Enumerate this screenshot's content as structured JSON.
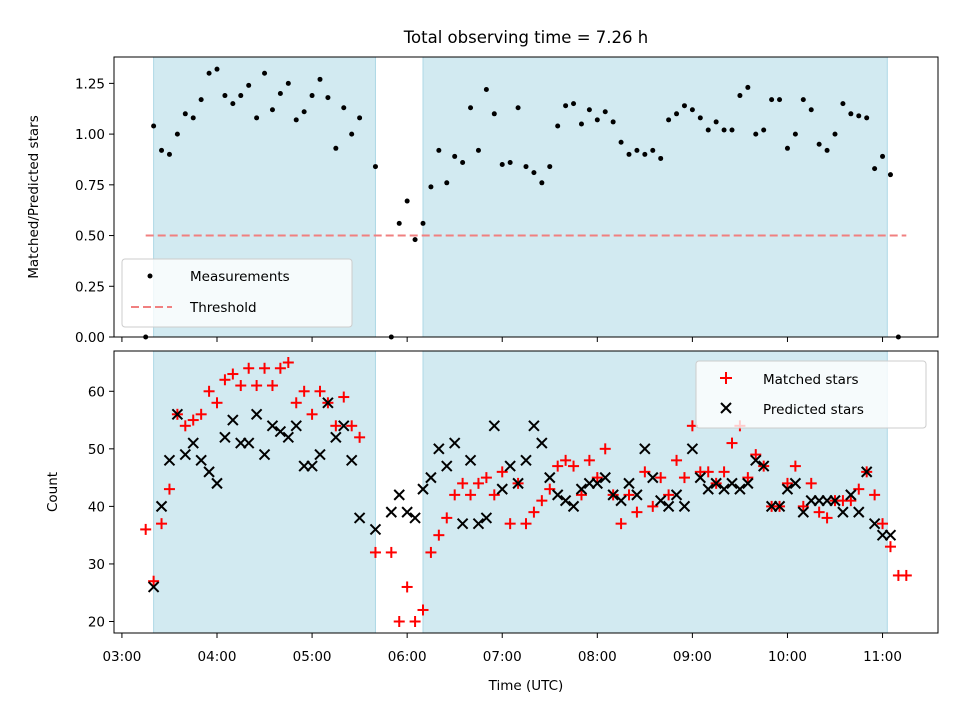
{
  "colors": {
    "span": "#add8e6",
    "measurement": "#000000",
    "threshold": "#f08080",
    "matched": "#ff0000",
    "predicted": "#000000"
  },
  "chart_data": [
    {
      "type": "scatter",
      "panel": "top",
      "title": "Total observing time = 7.26 h",
      "xlabel": "",
      "ylabel": "Matched/Predicted stars",
      "ylim": [
        0,
        1.38
      ],
      "yticks": [
        0.0,
        0.25,
        0.5,
        0.75,
        1.0,
        1.25
      ],
      "ytick_labels": [
        "0.00",
        "0.25",
        "0.50",
        "0.75",
        "1.00",
        "1.25"
      ],
      "shaded_spans": [
        [
          "03:20",
          "05:40"
        ],
        [
          "06:10",
          "11:03"
        ]
      ],
      "legend": {
        "position": "lower-left",
        "entries": [
          "Measurements",
          "Threshold"
        ]
      },
      "threshold": {
        "name": "Threshold",
        "y": 0.5,
        "x": [
          "03:15",
          "11:15"
        ]
      },
      "series": [
        {
          "name": "Measurements",
          "x": [
            "03:15",
            "03:20",
            "03:25",
            "03:30",
            "03:35",
            "03:40",
            "03:45",
            "03:50",
            "03:55",
            "04:00",
            "04:05",
            "04:10",
            "04:15",
            "04:20",
            "04:25",
            "04:30",
            "04:35",
            "04:40",
            "04:45",
            "04:50",
            "04:55",
            "05:00",
            "05:05",
            "05:10",
            "05:15",
            "05:20",
            "05:25",
            "05:30",
            "05:40",
            "05:50",
            "05:55",
            "06:00",
            "06:05",
            "06:10",
            "06:15",
            "06:20",
            "06:25",
            "06:30",
            "06:35",
            "06:40",
            "06:45",
            "06:50",
            "06:55",
            "07:00",
            "07:05",
            "07:10",
            "07:15",
            "07:20",
            "07:25",
            "07:30",
            "07:35",
            "07:40",
            "07:45",
            "07:50",
            "07:55",
            "08:00",
            "08:05",
            "08:10",
            "08:15",
            "08:20",
            "08:25",
            "08:30",
            "08:35",
            "08:40",
            "08:45",
            "08:50",
            "08:55",
            "09:00",
            "09:05",
            "09:10",
            "09:15",
            "09:20",
            "09:25",
            "09:30",
            "09:35",
            "09:40",
            "09:45",
            "09:50",
            "09:55",
            "10:00",
            "10:05",
            "10:10",
            "10:15",
            "10:20",
            "10:25",
            "10:30",
            "10:35",
            "10:40",
            "10:45",
            "10:50",
            "10:55",
            "11:00",
            "11:05",
            "11:10"
          ],
          "values": [
            0.0,
            1.04,
            0.92,
            0.9,
            1.0,
            1.1,
            1.08,
            1.17,
            1.3,
            1.32,
            1.19,
            1.15,
            1.19,
            1.24,
            1.08,
            1.3,
            1.12,
            1.2,
            1.25,
            1.07,
            1.11,
            1.19,
            1.27,
            1.18,
            0.93,
            1.13,
            1.0,
            1.08,
            0.84,
            0.0,
            0.56,
            0.67,
            0.48,
            0.56,
            0.74,
            0.92,
            0.76,
            0.89,
            0.86,
            1.13,
            0.92,
            1.22,
            1.1,
            0.85,
            0.86,
            1.13,
            0.84,
            0.81,
            0.76,
            0.84,
            1.04,
            1.14,
            1.15,
            1.05,
            1.12,
            1.07,
            1.11,
            1.06,
            0.96,
            0.9,
            0.92,
            0.9,
            0.92,
            0.88,
            1.07,
            1.1,
            1.14,
            1.12,
            1.08,
            1.02,
            1.06,
            1.02,
            1.02,
            1.19,
            1.23,
            1.0,
            1.02,
            1.17,
            1.17,
            0.93,
            1.0,
            1.17,
            1.12,
            0.95,
            0.92,
            1.0,
            1.15,
            1.1,
            1.09,
            1.08,
            0.83,
            0.89,
            0.8,
            0.0
          ]
        }
      ]
    },
    {
      "type": "scatter",
      "panel": "bottom",
      "title": "",
      "xlabel": "Time (UTC)",
      "ylabel": "Count",
      "ylim": [
        18,
        67
      ],
      "yticks": [
        20,
        30,
        40,
        50,
        60
      ],
      "xlim": [
        "02:55",
        "11:35"
      ],
      "xticks": [
        "03:00",
        "04:00",
        "05:00",
        "06:00",
        "07:00",
        "08:00",
        "09:00",
        "10:00",
        "11:00"
      ],
      "shaded_spans": [
        [
          "03:20",
          "05:40"
        ],
        [
          "06:10",
          "11:03"
        ]
      ],
      "legend": {
        "position": "top-right",
        "entries": [
          "Matched stars",
          "Predicted stars"
        ]
      },
      "series": [
        {
          "name": "Matched stars",
          "marker": "plus",
          "x": [
            "03:15",
            "03:20",
            "03:25",
            "03:30",
            "03:35",
            "03:40",
            "03:45",
            "03:50",
            "03:55",
            "04:00",
            "04:05",
            "04:10",
            "04:15",
            "04:20",
            "04:25",
            "04:30",
            "04:35",
            "04:40",
            "04:45",
            "04:50",
            "04:55",
            "05:00",
            "05:05",
            "05:10",
            "05:15",
            "05:20",
            "05:25",
            "05:30",
            "05:40",
            "05:50",
            "05:55",
            "06:00",
            "06:05",
            "06:10",
            "06:15",
            "06:20",
            "06:25",
            "06:30",
            "06:35",
            "06:40",
            "06:45",
            "06:50",
            "06:55",
            "07:00",
            "07:05",
            "07:10",
            "07:15",
            "07:20",
            "07:25",
            "07:30",
            "07:35",
            "07:40",
            "07:45",
            "07:50",
            "07:55",
            "08:00",
            "08:05",
            "08:10",
            "08:15",
            "08:20",
            "08:25",
            "08:30",
            "08:35",
            "08:40",
            "08:45",
            "08:50",
            "08:55",
            "09:00",
            "09:05",
            "09:10",
            "09:15",
            "09:20",
            "09:25",
            "09:30",
            "09:35",
            "09:40",
            "09:45",
            "09:50",
            "09:55",
            "10:00",
            "10:05",
            "10:10",
            "10:15",
            "10:20",
            "10:25",
            "10:30",
            "10:35",
            "10:40",
            "10:45",
            "10:50",
            "10:55",
            "11:00",
            "11:05",
            "11:10",
            "11:15"
          ],
          "values": [
            36,
            27,
            37,
            43,
            56,
            54,
            55,
            56,
            60,
            58,
            62,
            63,
            61,
            64,
            61,
            64,
            61,
            64,
            65,
            58,
            60,
            56,
            60,
            58,
            54,
            59,
            54,
            52,
            32,
            32,
            20,
            26,
            20,
            22,
            32,
            35,
            38,
            42,
            44,
            42,
            44,
            45,
            42,
            46,
            37,
            44,
            37,
            39,
            41,
            43,
            47,
            48,
            47,
            42,
            48,
            45,
            50,
            42,
            37,
            42,
            39,
            46,
            40,
            45,
            42,
            48,
            45,
            54,
            46,
            46,
            44,
            46,
            51,
            54,
            45,
            49,
            47,
            40,
            40,
            44,
            47,
            40,
            44,
            39,
            38,
            41,
            41,
            41,
            43,
            46,
            42,
            37,
            33,
            28,
            28
          ]
        },
        {
          "name": "Predicted stars",
          "marker": "x",
          "x": [
            "03:20",
            "03:25",
            "03:30",
            "03:35",
            "03:40",
            "03:45",
            "03:50",
            "03:55",
            "04:00",
            "04:05",
            "04:10",
            "04:15",
            "04:20",
            "04:25",
            "04:30",
            "04:35",
            "04:40",
            "04:45",
            "04:50",
            "04:55",
            "05:00",
            "05:05",
            "05:10",
            "05:15",
            "05:20",
            "05:25",
            "05:30",
            "05:40",
            "05:50",
            "05:55",
            "06:00",
            "06:05",
            "06:10",
            "06:15",
            "06:20",
            "06:25",
            "06:30",
            "06:35",
            "06:40",
            "06:45",
            "06:50",
            "06:55",
            "07:00",
            "07:05",
            "07:10",
            "07:15",
            "07:20",
            "07:25",
            "07:30",
            "07:35",
            "07:40",
            "07:45",
            "07:50",
            "07:55",
            "08:00",
            "08:05",
            "08:10",
            "08:15",
            "08:20",
            "08:25",
            "08:30",
            "08:35",
            "08:40",
            "08:45",
            "08:50",
            "08:55",
            "09:00",
            "09:05",
            "09:10",
            "09:15",
            "09:20",
            "09:25",
            "09:30",
            "09:35",
            "09:40",
            "09:45",
            "09:50",
            "09:55",
            "10:00",
            "10:05",
            "10:10",
            "10:15",
            "10:20",
            "10:25",
            "10:30",
            "10:35",
            "10:40",
            "10:45",
            "10:50",
            "10:55",
            "11:00",
            "11:05"
          ],
          "values": [
            26,
            40,
            48,
            56,
            49,
            51,
            48,
            46,
            44,
            52,
            55,
            51,
            51,
            56,
            49,
            54,
            53,
            52,
            54,
            47,
            47,
            49,
            58,
            52,
            54,
            48,
            38,
            36,
            39,
            42,
            39,
            38,
            43,
            45,
            50,
            47,
            51,
            37,
            48,
            37,
            38,
            54,
            43,
            47,
            44,
            48,
            54,
            51,
            45,
            42,
            41,
            40,
            43,
            44,
            44,
            45,
            42,
            41,
            44,
            42,
            50,
            45,
            41,
            40,
            42,
            40,
            50,
            45,
            43,
            44,
            43,
            44,
            43,
            44,
            48,
            47,
            40,
            40,
            43,
            44,
            39,
            41,
            41,
            41,
            41,
            39,
            42,
            39,
            46,
            37,
            35,
            35
          ]
        }
      ]
    }
  ]
}
